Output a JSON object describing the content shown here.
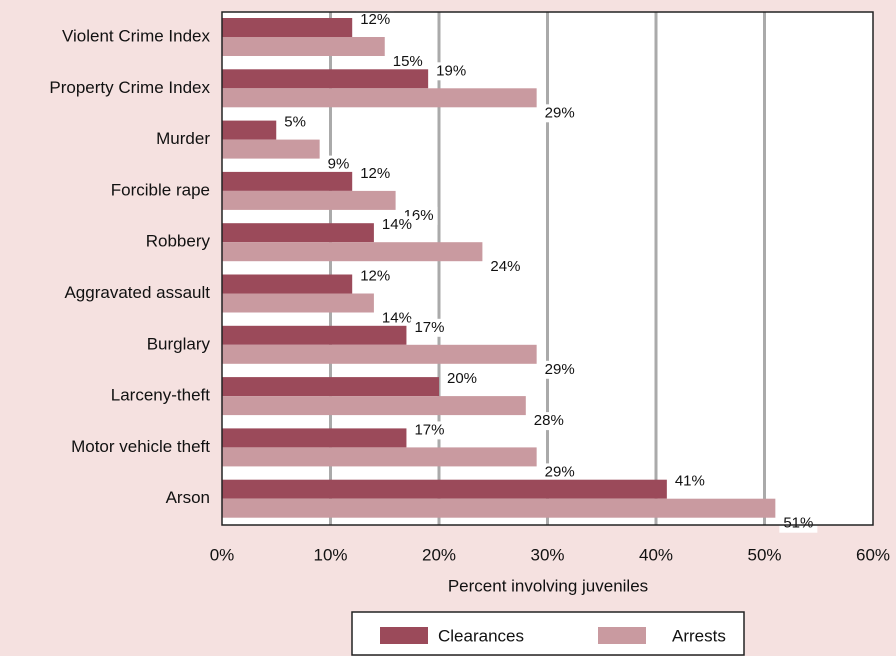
{
  "chart_data": {
    "type": "bar",
    "orientation": "horizontal",
    "x_label": "Percent involving juveniles",
    "categories": [
      "Violent Crime Index",
      "Property Crime Index",
      "Murder",
      "Forcible rape",
      "Robbery",
      "Aggravated assault",
      "Burglary",
      "Larceny-theft",
      "Motor vehicle theft",
      "Arson"
    ],
    "series": [
      {
        "name": "Clearances",
        "color": "#9b4a5a",
        "values": [
          12,
          19,
          5,
          12,
          14,
          12,
          17,
          20,
          17,
          41
        ],
        "value_labels": [
          "12%",
          "19%",
          "5%",
          "12%",
          "14%",
          "12%",
          "17%",
          "20%",
          "17%",
          "41%"
        ]
      },
      {
        "name": "Arrests",
        "color": "#c99aa0",
        "values": [
          15,
          29,
          9,
          16,
          24,
          14,
          29,
          28,
          29,
          51
        ],
        "value_labels": [
          "15%",
          "29%",
          "9%",
          "16%",
          "24%",
          "14%",
          "29%",
          "28%",
          "29%",
          "51%"
        ]
      }
    ],
    "xlim": [
      0,
      60
    ],
    "xticks": [
      {
        "value": 0,
        "label": "0%"
      },
      {
        "value": 10,
        "label": "10%"
      },
      {
        "value": 20,
        "label": "20%"
      },
      {
        "value": 30,
        "label": "30%"
      },
      {
        "value": 40,
        "label": "40%"
      },
      {
        "value": 50,
        "label": "50%"
      },
      {
        "value": 60,
        "label": "60%"
      }
    ],
    "grid": true
  }
}
